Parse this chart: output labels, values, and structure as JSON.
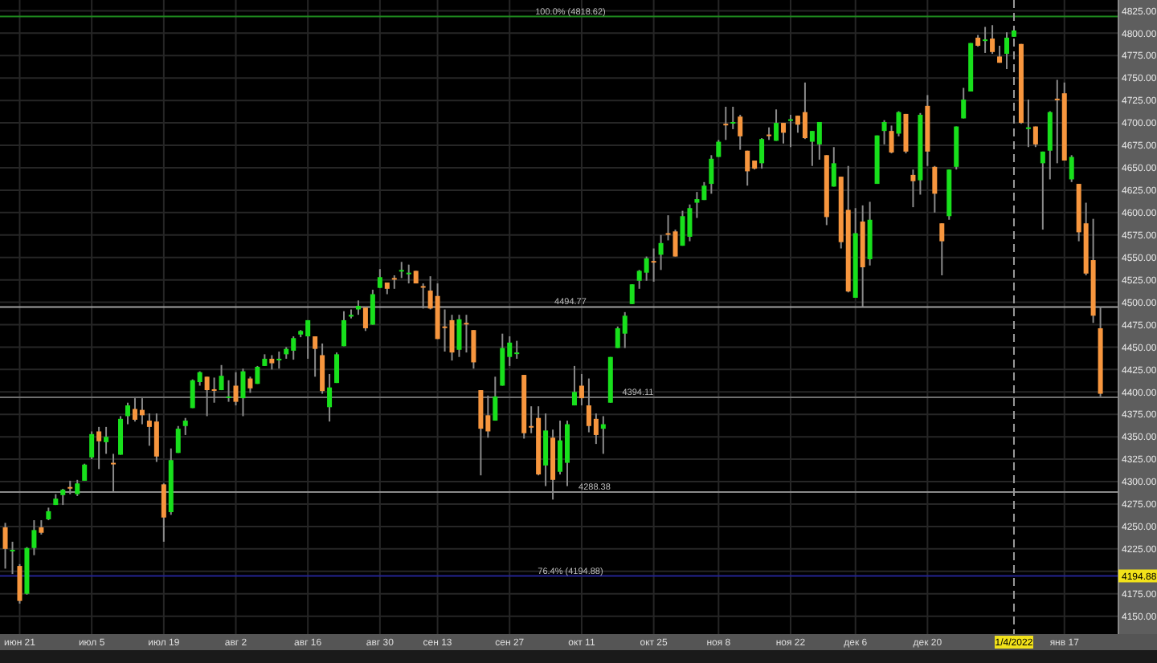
{
  "chart_data": {
    "type": "candlestick",
    "categories": [
      null,
      null,
      "июн 21",
      null,
      null,
      null,
      null,
      null,
      null,
      null,
      null,
      null,
      "июл 5",
      null,
      null,
      null,
      null,
      null,
      null,
      null,
      null,
      null,
      "июл 19",
      null,
      null,
      null,
      null,
      null,
      null,
      null,
      null,
      null,
      "авг 2",
      null,
      null,
      null,
      null,
      null,
      null,
      null,
      null,
      null,
      "авг 16",
      null,
      null,
      null,
      null,
      null,
      null,
      null,
      null,
      null,
      "авг 30",
      null,
      null,
      null,
      null,
      null,
      null,
      null,
      "сен 13",
      null,
      null,
      null,
      null,
      null,
      null,
      null,
      null,
      null,
      "сен 27",
      null,
      null,
      null,
      null,
      null,
      null,
      null,
      null,
      null,
      "окт 11",
      null,
      null,
      null,
      null,
      null,
      null,
      null,
      null,
      null,
      "окт 25",
      null,
      null,
      null,
      null,
      null,
      null,
      null,
      null,
      "ноя 8",
      null,
      null,
      null,
      null,
      null,
      null,
      null,
      null,
      null,
      "ноя 22",
      null,
      null,
      null,
      null,
      null,
      null,
      null,
      null,
      "дек 6",
      null,
      null,
      null,
      null,
      null,
      null,
      null,
      null,
      null,
      "дек 20",
      null,
      null,
      null,
      null,
      null,
      null,
      null,
      null,
      null,
      null,
      null,
      "1/4/2022",
      null,
      null,
      null,
      null,
      null,
      null,
      "янв 17",
      null,
      null,
      null,
      null,
      null
    ],
    "ohlc": [
      [
        4249,
        4254,
        4203,
        4225
      ],
      [
        4223,
        4233,
        4197,
        4224
      ],
      [
        4206,
        4208,
        4164,
        4167
      ],
      [
        4175,
        4227,
        4174,
        4226
      ],
      [
        4226,
        4257,
        4218,
        4246
      ],
      [
        4249,
        4257,
        4241,
        4243
      ],
      [
        4258,
        4271,
        4257,
        4267
      ],
      [
        4274,
        4286,
        4274,
        4281
      ],
      [
        4285,
        4292,
        4274,
        4291
      ],
      [
        4294,
        4301,
        4286,
        4293
      ],
      [
        4286,
        4302,
        4284,
        4298
      ],
      [
        4301,
        4320,
        4301,
        4319
      ],
      [
        4327,
        4356,
        4325,
        4353
      ],
      [
        4356,
        4361,
        4314,
        4345
      ],
      [
        4344,
        4361,
        4331,
        4350
      ],
      [
        4321,
        4331,
        4289,
        4320
      ],
      [
        4330,
        4373,
        4330,
        4370
      ],
      [
        4373,
        4388,
        4364,
        4385
      ],
      [
        4381,
        4393,
        4367,
        4369
      ],
      [
        4380,
        4393,
        4364,
        4374
      ],
      [
        4368,
        4376,
        4340,
        4361
      ],
      [
        4367,
        4376,
        4322,
        4328
      ],
      [
        4297,
        4298,
        4233,
        4260
      ],
      [
        4266,
        4337,
        4263,
        4324
      ],
      [
        4332,
        4362,
        4332,
        4359
      ],
      [
        4362,
        4371,
        4352,
        4368
      ],
      [
        4382,
        4414,
        4382,
        4413
      ],
      [
        4411,
        4423,
        4407,
        4422
      ],
      [
        4417,
        4417,
        4373,
        4402
      ],
      [
        4403,
        4416,
        4388,
        4402
      ],
      [
        4402,
        4430,
        4402,
        4418
      ],
      [
        4394,
        4413,
        4389,
        4395
      ],
      [
        4407,
        4422,
        4385,
        4389
      ],
      [
        4393,
        4426,
        4373,
        4423
      ],
      [
        4415,
        4417,
        4399,
        4404
      ],
      [
        4409,
        4429,
        4409,
        4428
      ],
      [
        4429,
        4442,
        4429,
        4437
      ],
      [
        4437,
        4441,
        4425,
        4432
      ],
      [
        4436,
        4445,
        4426,
        4437
      ],
      [
        4442,
        4450,
        4437,
        4448
      ],
      [
        4446,
        4462,
        4436,
        4460
      ],
      [
        4464,
        4469,
        4461,
        4468
      ],
      [
        4462,
        4480,
        4437,
        4480
      ],
      [
        4462,
        4462,
        4417,
        4448
      ],
      [
        4441,
        4454,
        4398,
        4401
      ],
      [
        4383,
        4420,
        4367,
        4405
      ],
      [
        4410,
        4444,
        4410,
        4442
      ],
      [
        4451,
        4490,
        4451,
        4480
      ],
      [
        4484,
        4492,
        4482,
        4486
      ],
      [
        4492,
        4502,
        4486,
        4496
      ],
      [
        4494,
        4495,
        4468,
        4471
      ],
      [
        4475,
        4514,
        4475,
        4509
      ],
      [
        4516,
        4537,
        4516,
        4528
      ],
      [
        4522,
        4522,
        4509,
        4515
      ],
      [
        4527,
        4530,
        4515,
        4526
      ],
      [
        4535,
        4545,
        4527,
        4536
      ],
      [
        4532,
        4542,
        4521,
        4533
      ],
      [
        4535,
        4535,
        4521,
        4521
      ],
      [
        4518,
        4521,
        4493,
        4517
      ],
      [
        4513,
        4529,
        4492,
        4493
      ],
      [
        4507,
        4521,
        4459,
        4459
      ],
      [
        4473,
        4492,
        4445,
        4472
      ],
      [
        4480,
        4486,
        4435,
        4444
      ],
      [
        4447,
        4486,
        4439,
        4481
      ],
      [
        4477,
        4486,
        4444,
        4476
      ],
      [
        4469,
        4469,
        4426,
        4433
      ],
      [
        4402,
        4402,
        4307,
        4359
      ],
      [
        4374,
        4396,
        4349,
        4356
      ],
      [
        4368,
        4417,
        4368,
        4395
      ],
      [
        4407,
        4465,
        4407,
        4449
      ],
      [
        4439,
        4462,
        4429,
        4455
      ],
      [
        4443,
        4457,
        4437,
        4444
      ],
      [
        4419,
        4419,
        4348,
        4354
      ],
      [
        4362,
        4384,
        4354,
        4361
      ],
      [
        4371,
        4384,
        4307,
        4308
      ],
      [
        4318,
        4376,
        4295,
        4357
      ],
      [
        4349,
        4358,
        4280,
        4302
      ],
      [
        4311,
        4368,
        4308,
        4346
      ],
      [
        4321,
        4368,
        4295,
        4364
      ],
      [
        4385,
        4429,
        4385,
        4400
      ],
      [
        4407,
        4420,
        4385,
        4393
      ],
      [
        4385,
        4415,
        4355,
        4362
      ],
      [
        4370,
        4376,
        4342,
        4352
      ],
      [
        4359,
        4373,
        4331,
        4364
      ],
      [
        4388,
        4439,
        4388,
        4439
      ],
      [
        4449,
        4473,
        4449,
        4471
      ],
      [
        4465,
        4489,
        4449,
        4485
      ],
      [
        4498,
        4520,
        4498,
        4520
      ],
      [
        4524,
        4536,
        4515,
        4535
      ],
      [
        4533,
        4551,
        4524,
        4549
      ],
      [
        4546,
        4560,
        4523,
        4545
      ],
      [
        4553,
        4575,
        4536,
        4566
      ],
      [
        4577,
        4597,
        4569,
        4576
      ],
      [
        4579,
        4581,
        4551,
        4551
      ],
      [
        4563,
        4602,
        4563,
        4596
      ],
      [
        4573,
        4609,
        4568,
        4605
      ],
      [
        4611,
        4623,
        4594,
        4615
      ],
      [
        4614,
        4634,
        4614,
        4630
      ],
      [
        4632,
        4664,
        4621,
        4660
      ],
      [
        4662,
        4681,
        4662,
        4679
      ],
      [
        4699,
        4718,
        4681,
        4698
      ],
      [
        4700,
        4718,
        4693,
        4701
      ],
      [
        4707,
        4709,
        4670,
        4685
      ],
      [
        4669,
        4669,
        4630,
        4646
      ],
      [
        4658,
        4658,
        4648,
        4649
      ],
      [
        4655,
        4683,
        4649,
        4682
      ],
      [
        4687,
        4695,
        4681,
        4686
      ],
      [
        4680,
        4715,
        4680,
        4700
      ],
      [
        4700,
        4700,
        4677,
        4689
      ],
      [
        4703,
        4709,
        4673,
        4704
      ],
      [
        4708,
        4708,
        4689,
        4698
      ],
      [
        4712,
        4745,
        4682,
        4683
      ],
      [
        4679,
        4691,
        4652,
        4691
      ],
      [
        4676,
        4701,
        4659,
        4701
      ],
      [
        4664,
        4664,
        4586,
        4595
      ],
      [
        4629,
        4673,
        4629,
        4655
      ],
      [
        4640,
        4640,
        4560,
        4567
      ],
      [
        4603,
        4652,
        4511,
        4512
      ],
      [
        4505,
        4605,
        4505,
        4577
      ],
      [
        4590,
        4608,
        4495,
        4539
      ],
      [
        4548,
        4612,
        4541,
        4592
      ],
      [
        4632,
        4686,
        4632,
        4686
      ],
      [
        4691,
        4703,
        4676,
        4701
      ],
      [
        4691,
        4697,
        4666,
        4667
      ],
      [
        4688,
        4713,
        4685,
        4712
      ],
      [
        4710,
        4710,
        4666,
        4668
      ],
      [
        4642,
        4648,
        4606,
        4635
      ],
      [
        4636,
        4711,
        4620,
        4709
      ],
      [
        4719,
        4731,
        4652,
        4668
      ],
      [
        4651,
        4652,
        4600,
        4621
      ],
      [
        4588,
        4588,
        4530,
        4568
      ],
      [
        4596,
        4648,
        4592,
        4648
      ],
      [
        4651,
        4696,
        4648,
        4696
      ],
      [
        4705,
        4739,
        4705,
        4726
      ],
      [
        4735,
        4789,
        4735,
        4789
      ],
      [
        4795,
        4798,
        4785,
        4786
      ],
      [
        4792,
        4807,
        4778,
        4793
      ],
      [
        4794,
        4809,
        4777,
        4779
      ],
      [
        4774,
        4786,
        4767,
        4767
      ],
      [
        4777,
        4801,
        4760,
        4795
      ],
      [
        4796,
        4803,
        4796,
        4803
      ],
      [
        4788,
        4788,
        4699,
        4700
      ],
      [
        4694,
        4726,
        4673,
        4695
      ],
      [
        4696,
        4696,
        4673,
        4676
      ],
      [
        4655,
        4668,
        4581,
        4668
      ],
      [
        4669,
        4713,
        4637,
        4712
      ],
      [
        4727,
        4748,
        4655,
        4726
      ],
      [
        4733,
        4745,
        4658,
        4658
      ],
      [
        4637,
        4664,
        4634,
        4662
      ],
      [
        4632,
        4632,
        4568,
        4578
      ],
      [
        4588,
        4611,
        4530,
        4532
      ],
      [
        4547,
        4593,
        4477,
        4485
      ],
      [
        4471,
        4495,
        4395,
        4398
      ]
    ],
    "ylim": [
      4130,
      4837
    ],
    "yticks": [
      {
        "value": 4150,
        "label": "4150.00"
      },
      {
        "value": 4175,
        "label": "4175.00"
      },
      {
        "value": 4200,
        "label": null
      },
      {
        "value": 4225,
        "label": "4225.00"
      },
      {
        "value": 4250,
        "label": "4250.00"
      },
      {
        "value": 4275,
        "label": "4275.00"
      },
      {
        "value": 4300,
        "label": "4300.00"
      },
      {
        "value": 4325,
        "label": "4325.00"
      },
      {
        "value": 4350,
        "label": "4350.00"
      },
      {
        "value": 4375,
        "label": "4375.00"
      },
      {
        "value": 4400,
        "label": "4400.00"
      },
      {
        "value": 4425,
        "label": "4425.00"
      },
      {
        "value": 4450,
        "label": "4450.00"
      },
      {
        "value": 4475,
        "label": "4475.00"
      },
      {
        "value": 4500,
        "label": "4500.00"
      },
      {
        "value": 4525,
        "label": "4525.00"
      },
      {
        "value": 4550,
        "label": "4550.00"
      },
      {
        "value": 4575,
        "label": "4575.00"
      },
      {
        "value": 4600,
        "label": "4600.00"
      },
      {
        "value": 4625,
        "label": "4625.00"
      },
      {
        "value": 4650,
        "label": "4650.00"
      },
      {
        "value": 4675,
        "label": "4675.00"
      },
      {
        "value": 4700,
        "label": "4700.00"
      },
      {
        "value": 4725,
        "label": "4725.00"
      },
      {
        "value": 4750,
        "label": "4750.00"
      },
      {
        "value": 4775,
        "label": "4775.00"
      },
      {
        "value": 4800,
        "label": "4800.00"
      },
      {
        "value": 4825,
        "label": "4825.00"
      }
    ],
    "grid": true,
    "ref_lines": [
      {
        "axis": "y",
        "value": 4818.62,
        "label": "100.0% (4818.62)",
        "color": "#1f8a1f"
      },
      {
        "axis": "y",
        "value": 4494.77,
        "label": "4494.77",
        "color": "#a0a0a0"
      },
      {
        "axis": "y",
        "value": 4394.11,
        "label": "4394.11",
        "color": "#6e6e6e"
      },
      {
        "axis": "y",
        "value": 4288.38,
        "label": "4288.38",
        "color": "#8a8a8a"
      },
      {
        "axis": "y",
        "value": 4194.88,
        "label": "76.4% (4194.88)",
        "color": "#23238f"
      },
      {
        "axis": "x",
        "value": "1/4/2022",
        "color": "#9a9a9a",
        "line_style": "dashed"
      }
    ],
    "annotations": [
      {
        "text": "4194.88",
        "y": 4194.88
      }
    ]
  }
}
